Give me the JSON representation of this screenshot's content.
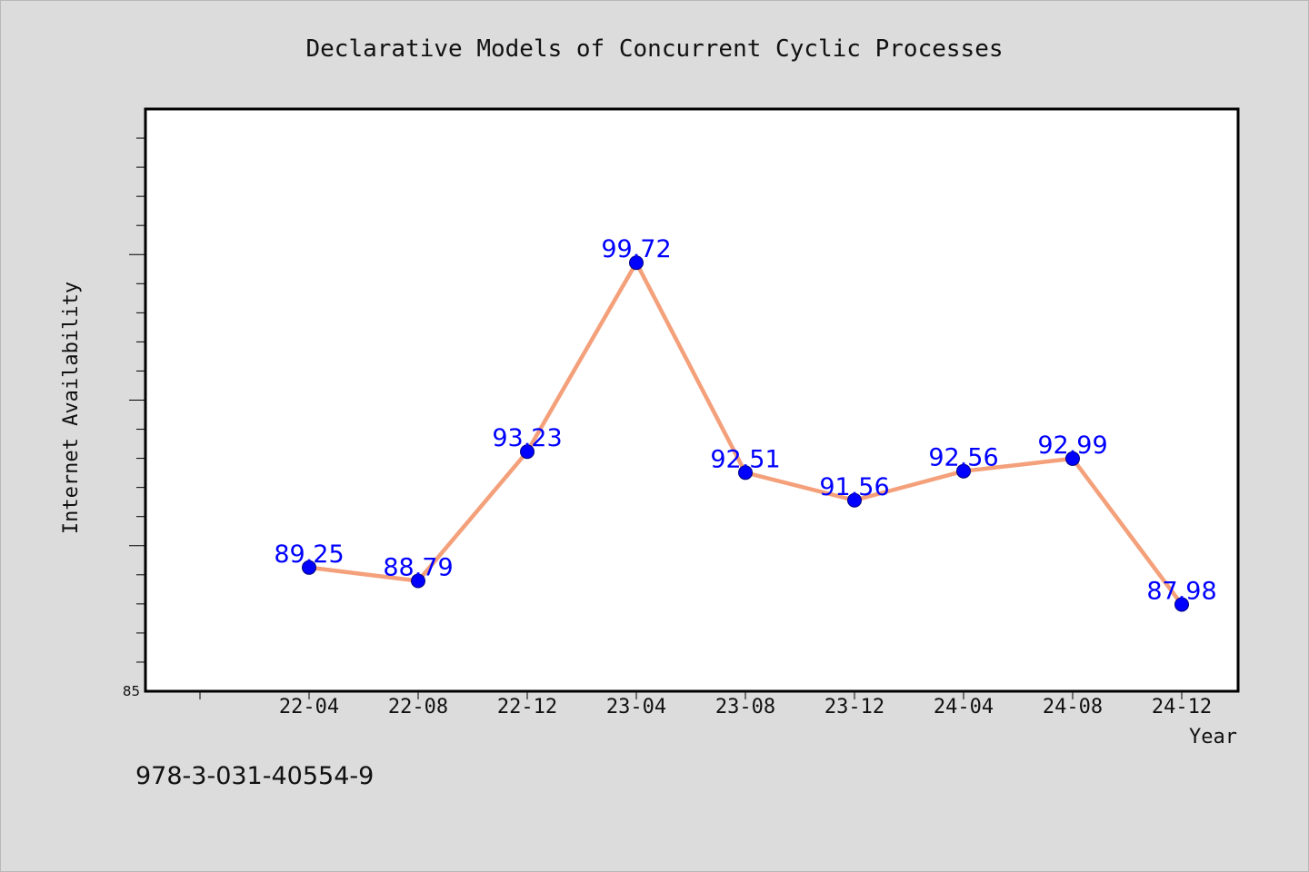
{
  "chart_data": {
    "type": "line",
    "title": "Declarative Models of Concurrent Cyclic Processes",
    "xlabel": "Year",
    "ylabel": "Internet Availability",
    "categories": [
      "22-04",
      "22-08",
      "22-12",
      "23-04",
      "23-08",
      "23-12",
      "24-04",
      "24-08",
      "24-12"
    ],
    "values": [
      89.25,
      88.79,
      93.23,
      99.72,
      92.51,
      91.56,
      92.56,
      92.99,
      87.98
    ],
    "data_labels": [
      "89.25",
      "88.79",
      "93.23",
      "99.72",
      "92.51",
      "91.56",
      "92.56",
      "92.99",
      "87.98"
    ],
    "ylim": [
      85,
      105
    ],
    "y_tick_labels": [
      "85"
    ],
    "grid": false,
    "line_color": "#f4a07a",
    "marker_color": "#0000ff",
    "label_color": "#0000ff"
  },
  "footnote": "978-3-031-40554-9"
}
